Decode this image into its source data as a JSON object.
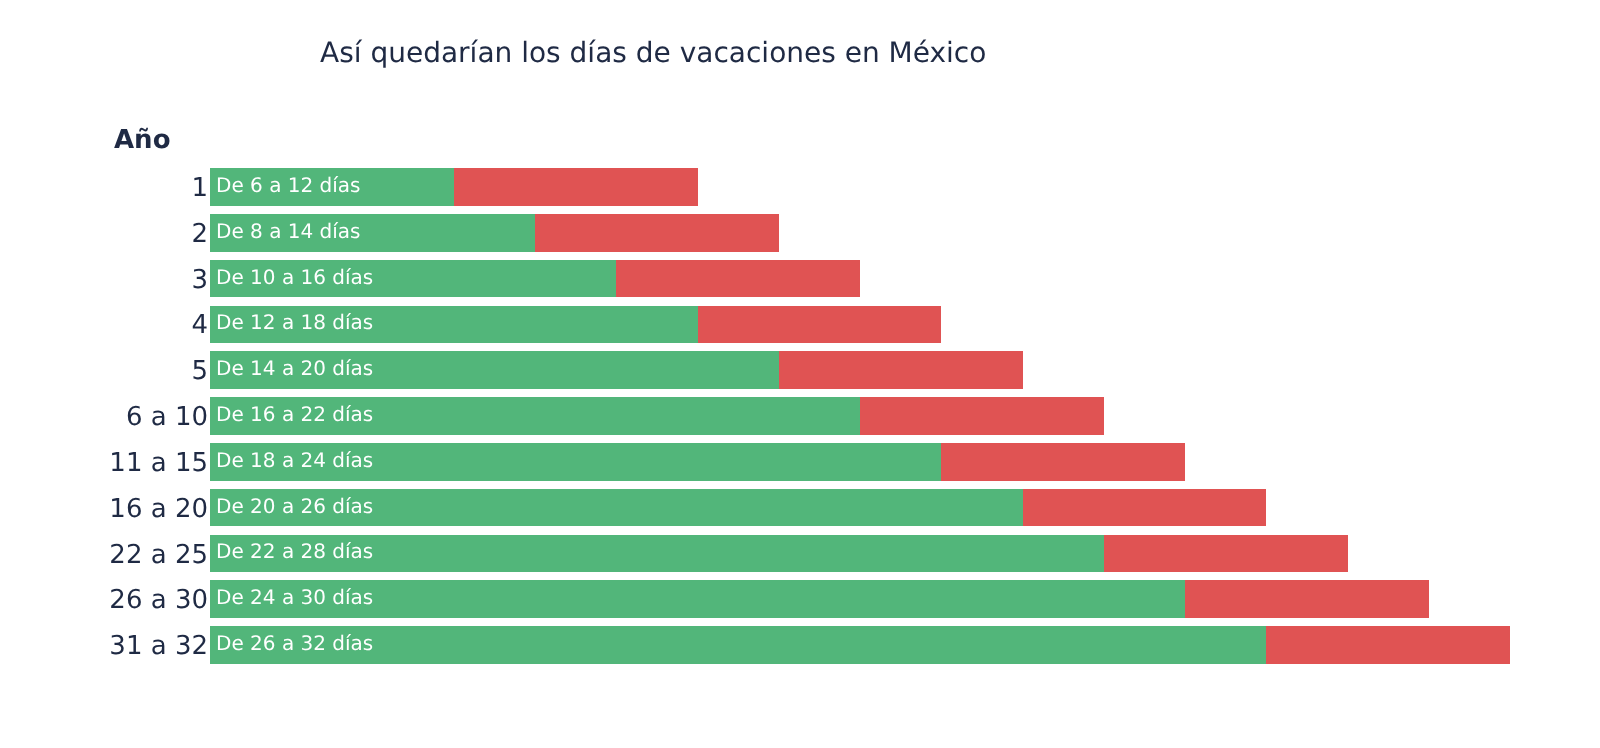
{
  "chart_data": {
    "type": "bar",
    "orientation": "horizontal",
    "stacked": true,
    "title": "Así quedarían los días de vacaciones en México",
    "ylabel": "Año",
    "categories": [
      "1",
      "2",
      "3",
      "4",
      "5",
      "6 a 10",
      "11 a 15",
      "16 a 20",
      "22 a 25",
      "26 a 30",
      "31 a 32"
    ],
    "series": [
      {
        "color": "#52b67a",
        "values": [
          6,
          8,
          10,
          12,
          14,
          16,
          18,
          20,
          22,
          24,
          26
        ],
        "value_labels": [
          "De 6 a 12 días",
          "De 8 a 14 días",
          "De 10 a 16 días",
          "De 12 a 18 días",
          "De 14 a 20 días",
          "De 16 a 22 días",
          "De 18 a 24 días",
          "De 20 a 26 días",
          "De 22 a 28 días",
          "De 24 a 30 días",
          "De 26 a 32 días"
        ]
      },
      {
        "color": "#e05353",
        "values": [
          6,
          6,
          6,
          6,
          6,
          6,
          6,
          6,
          6,
          6,
          6
        ]
      }
    ],
    "xlim": [
      0,
      32
    ],
    "tick_labels": "y"
  }
}
